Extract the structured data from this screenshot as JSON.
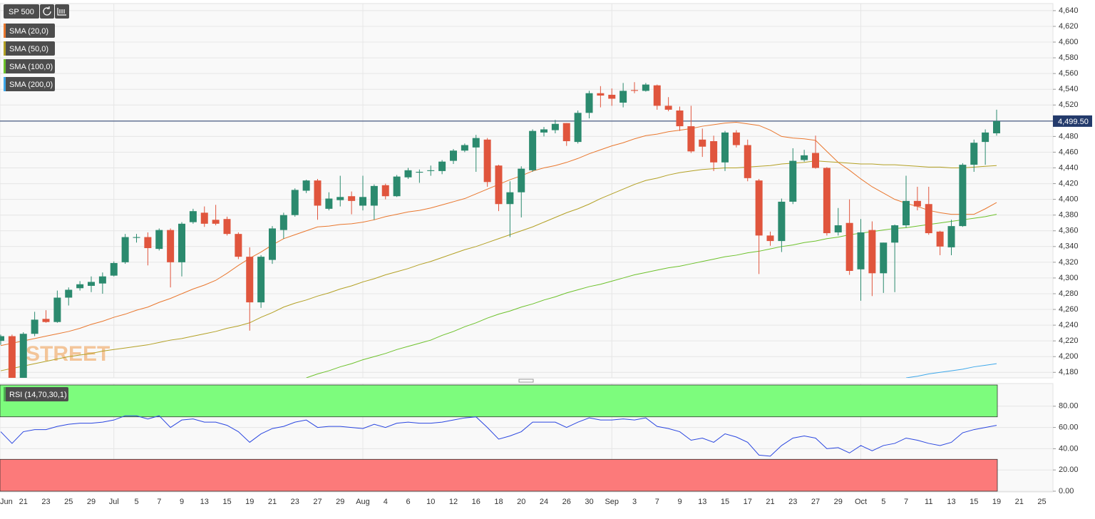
{
  "chart_data": {
    "type": "candlestick",
    "title": "SP 500",
    "watermark": "STREET",
    "categories": [
      "Jun",
      null,
      "21",
      null,
      "23",
      null,
      "25",
      null,
      "29",
      null,
      "Jul",
      null,
      "5",
      null,
      "7",
      null,
      "9",
      null,
      "13",
      null,
      "15",
      null,
      "19",
      null,
      "21",
      null,
      "23",
      null,
      "27",
      null,
      "29",
      null,
      "Aug",
      null,
      "4",
      null,
      "6",
      null,
      "10",
      null,
      "12",
      null,
      "16",
      null,
      "18",
      null,
      "20",
      null,
      "24",
      null,
      "26",
      null,
      "30",
      null,
      "Sep",
      null,
      "3",
      null,
      "7",
      null,
      "9",
      null,
      "13",
      null,
      "15",
      null,
      "17",
      null,
      "21",
      null,
      "23",
      null,
      "27",
      null,
      "29",
      null,
      "Oct",
      null,
      "5",
      null,
      "7",
      null,
      "11",
      null,
      "13",
      null,
      "15",
      null,
      "19",
      null,
      "21",
      null,
      "25"
    ],
    "open": [
      4220,
      4226,
      4172,
      4229,
      4248,
      4244,
      4275,
      4287,
      4290,
      4293,
      4303,
      4320,
      4351,
      4352,
      4337,
      4361,
      4320,
      4371,
      4383,
      4374,
      4375,
      4356,
      4327,
      4269,
      4323,
      4361,
      4380,
      4411,
      4424,
      4388,
      4399,
      4404,
      4392,
      4392,
      4418,
      4404,
      4428,
      4434,
      4436,
      4436,
      4449,
      4462,
      4466,
      4476,
      4443,
      4394,
      4409,
      4437,
      4485,
      4488,
      4497,
      4473,
      4510,
      4535,
      4533,
      4523,
      4539,
      4538,
      4545,
      4519,
      4513,
      4493,
      4476,
      4474,
      4447,
      4485,
      4469,
      4424,
      4354,
      4347,
      4397,
      4450,
      4459,
      4440,
      4358,
      4370,
      4311,
      4361,
      4306,
      4345,
      4367,
      4398,
      4394,
      4359,
      4339,
      4366,
      4444,
      4473,
      4484,
      null,
      null,
      null,
      null
    ],
    "high": [
      4228,
      4228,
      4231,
      4257,
      4259,
      4284,
      4288,
      4296,
      4302,
      4307,
      4321,
      4356,
      4356,
      4358,
      4363,
      4363,
      4371,
      4388,
      4391,
      4393,
      4378,
      4358,
      4339,
      4329,
      4366,
      4383,
      4414,
      4425,
      4426,
      4409,
      4430,
      4410,
      4430,
      4419,
      4420,
      4431,
      4440,
      4438,
      4443,
      4450,
      4464,
      4471,
      4482,
      4478,
      4444,
      4423,
      4442,
      4489,
      4492,
      4501,
      4497,
      4513,
      4538,
      4544,
      4541,
      4548,
      4549,
      4548,
      4546,
      4530,
      4518,
      4519,
      4490,
      4481,
      4487,
      4488,
      4476,
      4426,
      4359,
      4401,
      4465,
      4463,
      4481,
      4441,
      4389,
      4400,
      4375,
      4372,
      4345,
      4368,
      4430,
      4416,
      4416,
      4360,
      4374,
      4446,
      4476,
      4489,
      4514,
      null,
      null,
      null,
      null
    ],
    "low": [
      4215,
      4160,
      4165,
      4226,
      4243,
      4243,
      4265,
      4284,
      4282,
      4280,
      4302,
      4318,
      4345,
      4316,
      4335,
      4288,
      4302,
      4369,
      4365,
      4367,
      4354,
      4324,
      4233,
      4262,
      4318,
      4350,
      4378,
      4408,
      4374,
      4386,
      4391,
      4381,
      4386,
      4374,
      4400,
      4403,
      4426,
      4421,
      4430,
      4432,
      4445,
      4460,
      4435,
      4416,
      4385,
      4352,
      4377,
      4435,
      4480,
      4484,
      4468,
      4471,
      4503,
      4517,
      4519,
      4517,
      4535,
      4537,
      4514,
      4512,
      4487,
      4459,
      4454,
      4436,
      4436,
      4466,
      4423,
      4305,
      4341,
      4333,
      4394,
      4448,
      4439,
      4354,
      4354,
      4304,
      4271,
      4277,
      4281,
      4282,
      4364,
      4386,
      4355,
      4329,
      4329,
      4365,
      4435,
      4444,
      4481,
      null,
      null,
      null,
      null
    ],
    "close": [
      4226,
      4166,
      4229,
      4247,
      4244,
      4275,
      4285,
      4292,
      4295,
      4302,
      4319,
      4352,
      4352,
      4338,
      4361,
      4320,
      4369,
      4385,
      4369,
      4369,
      4356,
      4327,
      4269,
      4327,
      4363,
      4380,
      4412,
      4424,
      4392,
      4401,
      4403,
      4398,
      4403,
      4417,
      4404,
      4429,
      4437,
      4435,
      4437,
      4448,
      4462,
      4469,
      4478,
      4422,
      4394,
      4409,
      4439,
      4487,
      4489,
      4496,
      4474,
      4510,
      4535,
      4532,
      4528,
      4538,
      4538,
      4546,
      4519,
      4514,
      4493,
      4461,
      4467,
      4447,
      4485,
      4469,
      4427,
      4354,
      4347,
      4397,
      4449,
      4456,
      4440,
      4357,
      4367,
      4309,
      4358,
      4306,
      4345,
      4367,
      4398,
      4391,
      4357,
      4340,
      4366,
      4444,
      4472,
      4485,
      4499.5,
      null,
      null,
      null,
      null
    ],
    "up_color": "#2b8a6e",
    "down_color": "#e0553d",
    "series": [
      {
        "name": "SMA (20,0)",
        "color": "#e9772e",
        "values": [
          4214,
          4217,
          4220,
          4223,
          4226,
          4229,
          4232,
          4236,
          4241,
          4245,
          4250,
          4254,
          4259,
          4263,
          4269,
          4274,
          4280,
          4286,
          4291,
          4297,
          4306,
          4316,
          4325,
          4333,
          4342,
          4350,
          4355,
          4360,
          4365,
          4366,
          4368,
          4369,
          4371,
          4374,
          4378,
          4381,
          4384,
          4386,
          4389,
          4393,
          4397,
          4401,
          4407,
          4413,
          4419,
          4425,
          4430,
          4436,
          4440,
          4443,
          4447,
          4452,
          4458,
          4463,
          4468,
          4472,
          4477,
          4481,
          4483,
          4486,
          4488,
          4490,
          4493,
          4495,
          4497,
          4498,
          4496,
          4494,
          4488,
          4480,
          4478,
          4477,
          4475,
          4461,
          4447,
          4437,
          4426,
          4416,
          4408,
          4400,
          4395,
          4391,
          4386,
          4383,
          4381,
          4381,
          4381,
          4388,
          4396,
          null,
          null,
          null,
          null
        ]
      },
      {
        "name": "SMA (50,0)",
        "color": "#b3a024",
        "values": [
          4182,
          4185,
          4188,
          4191,
          4194,
          4197,
          4200,
          4202,
          4204,
          4207,
          4209,
          4211,
          4213,
          4215,
          4218,
          4221,
          4223,
          4226,
          4229,
          4232,
          4236,
          4239,
          4243,
          4250,
          4256,
          4263,
          4268,
          4272,
          4277,
          4281,
          4286,
          4290,
          4295,
          4299,
          4304,
          4308,
          4312,
          4317,
          4321,
          4326,
          4331,
          4336,
          4340,
          4345,
          4350,
          4355,
          4360,
          4365,
          4371,
          4377,
          4383,
          4388,
          4394,
          4401,
          4407,
          4413,
          4419,
          4424,
          4427,
          4431,
          4434,
          4436,
          4438,
          4439,
          4440,
          4440,
          4441,
          4442,
          4443,
          4445,
          4446,
          4447,
          4449,
          4448,
          4447,
          4446,
          4445,
          4445,
          4444,
          4444,
          4443,
          4442,
          4441,
          4441,
          4440,
          4440,
          4441,
          4442,
          4443,
          null,
          null,
          null,
          null
        ]
      },
      {
        "name": "SMA (100,0)",
        "color": "#6cc12a",
        "values": [
          null,
          null,
          null,
          null,
          null,
          null,
          null,
          null,
          null,
          null,
          null,
          null,
          null,
          null,
          null,
          null,
          null,
          null,
          null,
          null,
          null,
          null,
          null,
          null,
          null,
          null,
          null,
          4173,
          4178,
          4182,
          4187,
          4191,
          4196,
          4200,
          4204,
          4209,
          4213,
          4217,
          4221,
          4227,
          4232,
          4238,
          4243,
          4249,
          4254,
          4258,
          4263,
          4267,
          4272,
          4276,
          4281,
          4285,
          4289,
          4292,
          4296,
          4300,
          4304,
          4307,
          4310,
          4313,
          4315,
          4318,
          4321,
          4324,
          4327,
          4329,
          4332,
          4334,
          4337,
          4340,
          4342,
          4345,
          4347,
          4350,
          4352,
          4355,
          4357,
          4359,
          4361,
          4363,
          4364,
          4366,
          4368,
          4370,
          4372,
          4374,
          4376,
          4378,
          4381,
          null,
          null,
          null,
          null
        ]
      },
      {
        "name": "SMA (200,0)",
        "color": "#3ea8ea",
        "values": [
          null,
          null,
          null,
          null,
          null,
          null,
          null,
          null,
          null,
          null,
          null,
          null,
          null,
          null,
          null,
          null,
          null,
          null,
          null,
          null,
          null,
          null,
          null,
          null,
          null,
          null,
          null,
          null,
          null,
          null,
          null,
          null,
          null,
          null,
          null,
          null,
          null,
          null,
          null,
          null,
          null,
          null,
          null,
          null,
          null,
          null,
          null,
          null,
          null,
          null,
          null,
          null,
          null,
          null,
          null,
          null,
          null,
          null,
          null,
          null,
          null,
          null,
          null,
          null,
          null,
          null,
          null,
          null,
          null,
          null,
          null,
          null,
          null,
          null,
          null,
          null,
          null,
          null,
          null,
          null,
          4173,
          4175,
          4178,
          4180,
          4182,
          4184,
          4187,
          4189,
          4191,
          null,
          null,
          null,
          null
        ]
      }
    ],
    "last_price": {
      "value": 4499.5,
      "label": "4,499.50"
    },
    "last_color": "#233a6b",
    "ylim": [
      4173,
      4649
    ],
    "yticks": [
      {
        "value": 4180,
        "label": "4,180"
      },
      {
        "value": 4200,
        "label": "4,200"
      },
      {
        "value": 4220,
        "label": "4,220"
      },
      {
        "value": 4240,
        "label": "4,240"
      },
      {
        "value": 4260,
        "label": "4,260"
      },
      {
        "value": 4280,
        "label": "4,280"
      },
      {
        "value": 4300,
        "label": "4,300"
      },
      {
        "value": 4320,
        "label": "4,320"
      },
      {
        "value": 4340,
        "label": "4,340"
      },
      {
        "value": 4360,
        "label": "4,360"
      },
      {
        "value": 4380,
        "label": "4,380"
      },
      {
        "value": 4400,
        "label": "4,400"
      },
      {
        "value": 4420,
        "label": "4,420"
      },
      {
        "value": 4440,
        "label": "4,440"
      },
      {
        "value": 4460,
        "label": "4,460"
      },
      {
        "value": 4480,
        "label": "4,480"
      },
      {
        "value": 4500,
        "label": "4,500"
      },
      {
        "value": 4520,
        "label": "4,520"
      },
      {
        "value": 4540,
        "label": "4,540"
      },
      {
        "value": 4560,
        "label": "4,560"
      },
      {
        "value": 4580,
        "label": "4,580"
      },
      {
        "value": 4600,
        "label": "4,600"
      },
      {
        "value": 4620,
        "label": "4,620"
      },
      {
        "value": 4640,
        "label": "4,640"
      }
    ],
    "grid": true,
    "rsi": {
      "name": "RSI (14,70,30,1)",
      "color": "#2a46e0",
      "values": [
        56,
        45,
        56,
        58,
        58,
        61,
        63,
        64,
        64,
        65,
        67,
        71,
        71,
        68,
        71,
        60,
        67,
        68,
        65,
        65,
        62,
        56,
        46,
        54,
        59,
        61,
        65,
        67,
        60,
        61,
        61,
        60,
        59,
        63,
        60,
        64,
        65,
        64,
        64,
        65,
        67,
        69,
        70,
        60,
        49,
        52,
        56,
        65,
        65,
        65,
        60,
        65,
        69,
        67,
        67,
        68,
        67,
        69,
        61,
        59,
        56,
        48,
        50,
        46,
        54,
        51,
        46,
        34,
        33,
        43,
        50,
        52,
        50,
        40,
        41,
        36,
        43,
        38,
        43,
        45,
        50,
        48,
        45,
        43,
        46,
        55,
        58,
        60,
        62,
        null,
        null,
        null,
        null
      ],
      "upper": 70,
      "lower": 30,
      "upper_color": "#7dfc7d",
      "lower_color": "#fc7a7a",
      "ylim": [
        0,
        100
      ],
      "yticks": [
        {
          "value": 0,
          "label": "0.00"
        },
        {
          "value": 20,
          "label": "20.00"
        },
        {
          "value": 40,
          "label": "40.00"
        },
        {
          "value": 60,
          "label": "60.00"
        },
        {
          "value": 80,
          "label": "80.00"
        }
      ]
    }
  }
}
